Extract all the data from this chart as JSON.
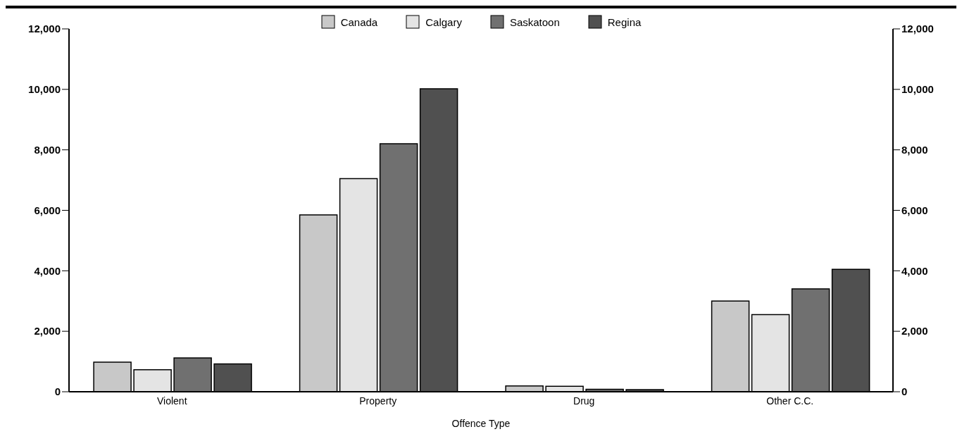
{
  "chart_data": {
    "type": "bar",
    "xlabel": "Offence Type",
    "categories": [
      "Violent",
      "Property",
      "Drug",
      "Other C.C."
    ],
    "series": [
      {
        "name": "Canada",
        "color": "#c8c8c8",
        "values": [
          980,
          5850,
          190,
          3000
        ]
      },
      {
        "name": "Calgary",
        "color": "#e4e4e4",
        "values": [
          730,
          7050,
          180,
          2550
        ]
      },
      {
        "name": "Saskatoon",
        "color": "#707070",
        "values": [
          1120,
          8200,
          80,
          3400
        ]
      },
      {
        "name": "Regina",
        "color": "#505050",
        "values": [
          920,
          10020,
          70,
          4050
        ]
      }
    ],
    "ylim": [
      0,
      12000
    ],
    "yticks": [
      0,
      {
        "value": 2000,
        "label": "2,000"
      },
      {
        "value": 4000,
        "label": "4,000"
      },
      {
        "value": 6000,
        "label": "6,000"
      },
      {
        "value": 8000,
        "label": "8,000"
      },
      {
        "value": 10000,
        "label": "10,000"
      },
      {
        "value": 12000,
        "label": "12,000"
      }
    ],
    "y2lim": [
      0,
      12000
    ],
    "y2ticks": [
      0,
      {
        "value": 2000,
        "label": "2,000"
      },
      {
        "value": 4000,
        "label": "4,000"
      },
      {
        "value": 6000,
        "label": "6,000"
      },
      {
        "value": 8000,
        "label": "8,000"
      },
      {
        "value": 10000,
        "label": "10,000"
      },
      {
        "value": 12000,
        "label": "12,000"
      }
    ],
    "grid": false,
    "legend": "top"
  }
}
